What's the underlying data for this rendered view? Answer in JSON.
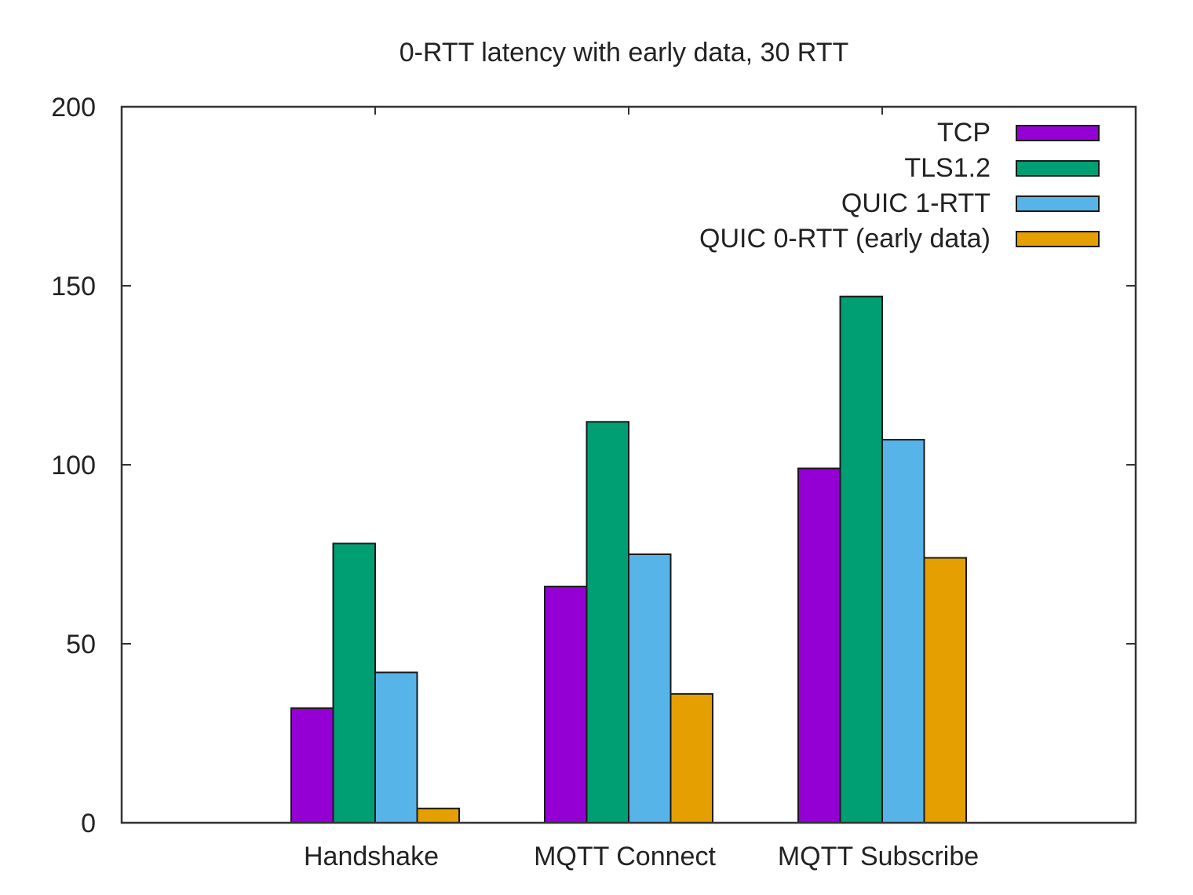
{
  "chart_data": {
    "type": "bar",
    "title": "0-RTT latency with early data, 30 RTT",
    "xlabel": "",
    "ylabel": "",
    "categories": [
      "Handshake",
      "MQTT Connect",
      "MQTT Subscribe"
    ],
    "series": [
      {
        "name": "TCP",
        "color": "#9400d3",
        "values": [
          32,
          66,
          99
        ]
      },
      {
        "name": "TLS1.2",
        "color": "#009e73",
        "values": [
          78,
          112,
          147
        ]
      },
      {
        "name": "QUIC 1-RTT",
        "color": "#56b4e9",
        "values": [
          42,
          75,
          107
        ]
      },
      {
        "name": "QUIC 0-RTT (early data)",
        "color": "#e69f00",
        "values": [
          4,
          36,
          74
        ]
      }
    ],
    "ylim": [
      0,
      200
    ],
    "yticks": [
      0,
      50,
      100,
      150,
      200
    ],
    "grid": false,
    "legend_position": "top-right-inside"
  }
}
